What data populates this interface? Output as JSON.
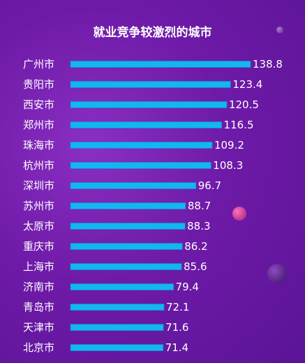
{
  "colors": {
    "bar": "#13b6ef",
    "bar_edge": "#0a8fd0",
    "text": "#ffffff",
    "background": "#6e1aa8"
  },
  "chart_data": {
    "type": "bar",
    "orientation": "horizontal",
    "title": "就业竞争较激烈的城市",
    "categories": [
      "广州市",
      "贵阳市",
      "西安市",
      "郑州市",
      "珠海市",
      "杭州市",
      "深圳市",
      "苏州市",
      "太原市",
      "重庆市",
      "上海市",
      "济南市",
      "青岛市",
      "天津市",
      "北京市"
    ],
    "values": [
      138.8,
      123.4,
      120.5,
      116.5,
      109.2,
      108.3,
      96.7,
      88.7,
      88.3,
      86.2,
      85.6,
      79.4,
      72.1,
      71.6,
      71.4
    ],
    "xlabel": "",
    "ylabel": "",
    "grid": false,
    "legend": "none"
  }
}
